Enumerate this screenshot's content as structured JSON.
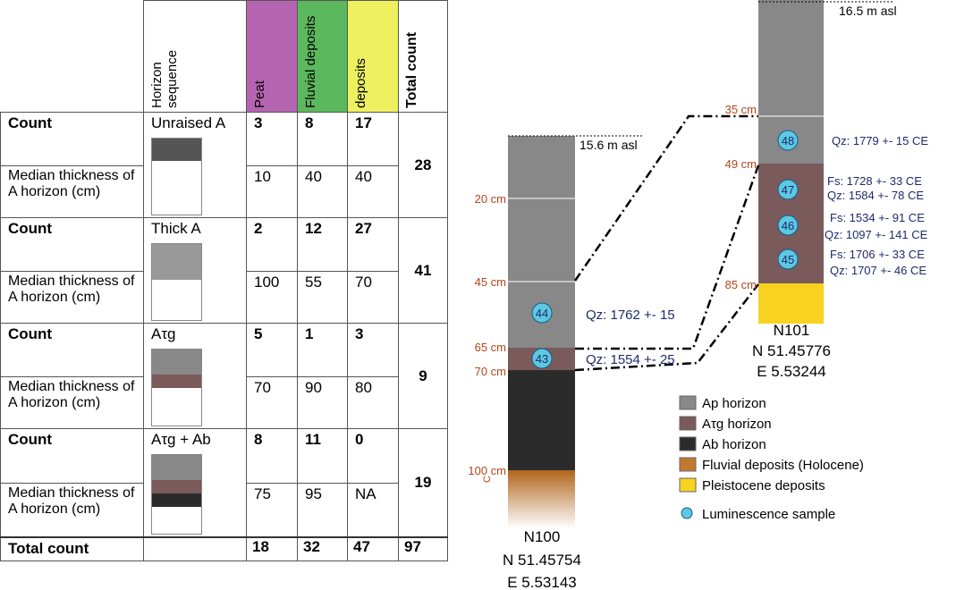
{
  "table": {
    "headers": {
      "horizon": "Horizon sequence",
      "peat": "Peat",
      "fluvial": "Fluvial deposits",
      "deposits": "deposits",
      "total": "Total count"
    },
    "groups": [
      {
        "count_label": "Count",
        "median_label": "Median thickness of A horizon (cm)",
        "horizon": "Unraised A",
        "counts": [
          3,
          8,
          17
        ],
        "medians": [
          10,
          40,
          40
        ],
        "total": 28
      },
      {
        "count_label": "Count",
        "median_label": "Median thickness of A horizon (cm)",
        "horizon": "Thick A",
        "counts": [
          2,
          12,
          27
        ],
        "medians": [
          100,
          55,
          70
        ],
        "total": 41
      },
      {
        "count_label": "Count",
        "median_label": "Median thickness of A horizon (cm)",
        "horizon": "Aτg",
        "counts": [
          5,
          1,
          3
        ],
        "medians": [
          70,
          90,
          80
        ],
        "total": 9
      },
      {
        "count_label": "Count",
        "median_label": "Median thickness of A horizon (cm)",
        "horizon": "Aτg + Ab",
        "counts": [
          8,
          11,
          0
        ],
        "medians": [
          75,
          95,
          "NA"
        ],
        "total": 19
      }
    ],
    "total_row": {
      "label": "Total count",
      "values": [
        18,
        32,
        47,
        97
      ]
    }
  },
  "profiles": [
    {
      "name": "N100",
      "lat": "N 51.45754",
      "lon": "E 5.53143",
      "elevation": "15.6 m asl",
      "depths": [
        "20 cm",
        "45 cm",
        "65 cm",
        "70 cm",
        "100 cm"
      ],
      "substrate": "C",
      "samples": [
        {
          "id": "44",
          "dates": [
            "Qz: 1762 +- 15"
          ]
        },
        {
          "id": "43",
          "dates": [
            "Qz: 1554 +- 25"
          ]
        }
      ]
    },
    {
      "name": "N101",
      "lat": "N 51.45776",
      "lon": "E 5.53244",
      "elevation": "16.5 m asl",
      "depths": [
        "35 cm",
        "49 cm",
        "85 cm"
      ],
      "samples": [
        {
          "id": "48",
          "dates": [
            "Qz: 1779 +- 15 CE"
          ]
        },
        {
          "id": "47",
          "dates": [
            "Fs: 1728 +- 33 CE",
            "Qz: 1584 +- 78 CE"
          ]
        },
        {
          "id": "46",
          "dates": [
            "Fs: 1534 +- 91 CE",
            "Qz: 1097 +- 141 CE"
          ]
        },
        {
          "id": "45",
          "dates": [
            "Fs: 1706 +- 33 CE",
            "Qz: 1707 +- 46 CE"
          ]
        }
      ]
    }
  ],
  "legend": [
    "Ap horizon",
    "Aτg horizon",
    "Ab horizon",
    "Fluvial deposits (Holocene)",
    "Pleistocene deposits",
    "Luminescence sample"
  ]
}
